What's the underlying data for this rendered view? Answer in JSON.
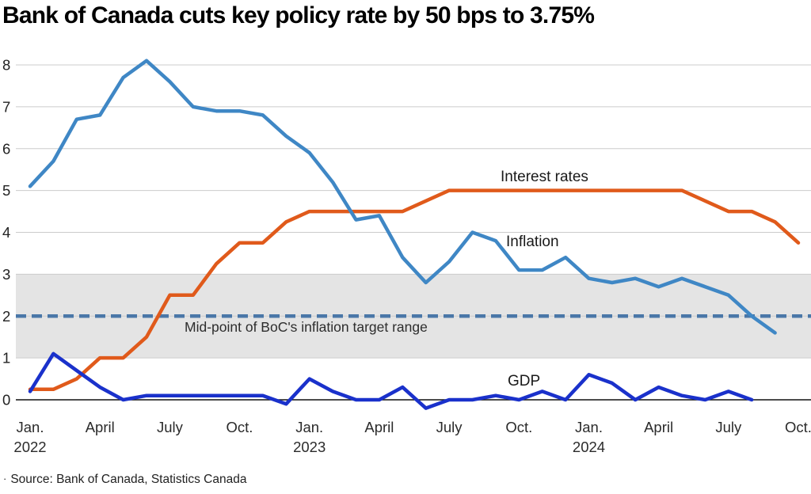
{
  "title": "Bank of Canada cuts key policy rate by 50 bps to 3.75%",
  "source": {
    "bullet": "·",
    "text": "Source: Bank of Canada, Statistics Canada"
  },
  "chart_data": {
    "type": "line",
    "title": "Bank of Canada cuts key policy rate by 50 bps to 3.75%",
    "x_axis": {
      "unit": "month",
      "start": "Jan. 2022",
      "end": "Oct. 2024",
      "tick_labels": [
        {
          "month_index": 0,
          "label": "Jan.",
          "year": "2022"
        },
        {
          "month_index": 3,
          "label": "April"
        },
        {
          "month_index": 6,
          "label": "July"
        },
        {
          "month_index": 9,
          "label": "Oct."
        },
        {
          "month_index": 12,
          "label": "Jan.",
          "year": "2023"
        },
        {
          "month_index": 15,
          "label": "April"
        },
        {
          "month_index": 18,
          "label": "July"
        },
        {
          "month_index": 21,
          "label": "Oct."
        },
        {
          "month_index": 24,
          "label": "Jan.",
          "year": "2024"
        },
        {
          "month_index": 27,
          "label": "April"
        },
        {
          "month_index": 30,
          "label": "July"
        },
        {
          "month_index": 33,
          "label": "Oct."
        }
      ]
    },
    "y_axis": {
      "ticks": [
        0,
        1,
        2,
        3,
        4,
        5,
        6,
        7,
        8
      ],
      "range": [
        0,
        8
      ],
      "grid": true
    },
    "target_band": {
      "from": 1,
      "to": 3,
      "color": "#e4e4e4",
      "meaning": "BoC inflation target range 1-3%"
    },
    "midpoint_line": {
      "value": 2,
      "style": "dashed",
      "color": "#4a77a8",
      "label": "Mid-point of BoC's inflation target range"
    },
    "series": [
      {
        "name": "Interest rates",
        "color": "#e05a1b",
        "start_month_index": 0,
        "values": [
          0.25,
          0.25,
          0.5,
          1.0,
          1.0,
          1.5,
          2.5,
          2.5,
          3.25,
          3.75,
          3.75,
          4.25,
          4.5,
          4.5,
          4.5,
          4.5,
          4.5,
          4.75,
          5.0,
          5.0,
          5.0,
          5.0,
          5.0,
          5.0,
          5.0,
          5.0,
          5.0,
          5.0,
          5.0,
          4.75,
          4.5,
          4.5,
          4.25,
          3.75
        ]
      },
      {
        "name": "Inflation",
        "color": "#3f87c5",
        "start_month_index": 0,
        "values": [
          5.1,
          5.7,
          6.7,
          6.8,
          7.7,
          8.1,
          7.6,
          7.0,
          6.9,
          6.9,
          6.8,
          6.3,
          5.9,
          5.2,
          4.3,
          4.4,
          3.4,
          2.8,
          3.3,
          4.0,
          3.8,
          3.1,
          3.1,
          3.4,
          2.9,
          2.8,
          2.9,
          2.7,
          2.9,
          2.7,
          2.5,
          2.0,
          1.6
        ]
      },
      {
        "name": "GDP",
        "color": "#1a31cb",
        "start_month_index": 0,
        "values": [
          0.2,
          1.1,
          0.7,
          0.3,
          0.0,
          0.1,
          0.1,
          0.1,
          0.1,
          0.1,
          0.1,
          -0.1,
          0.5,
          0.2,
          0.0,
          0.0,
          0.3,
          -0.2,
          0.0,
          0.0,
          0.1,
          0.0,
          0.2,
          0.0,
          0.6,
          0.4,
          0.0,
          0.3,
          0.1,
          0.0,
          0.2,
          0.0
        ]
      }
    ],
    "layout": {
      "grid_color": "#cccccc",
      "zero_line_color": "#111111",
      "legend_position": "inline-annotations"
    }
  }
}
